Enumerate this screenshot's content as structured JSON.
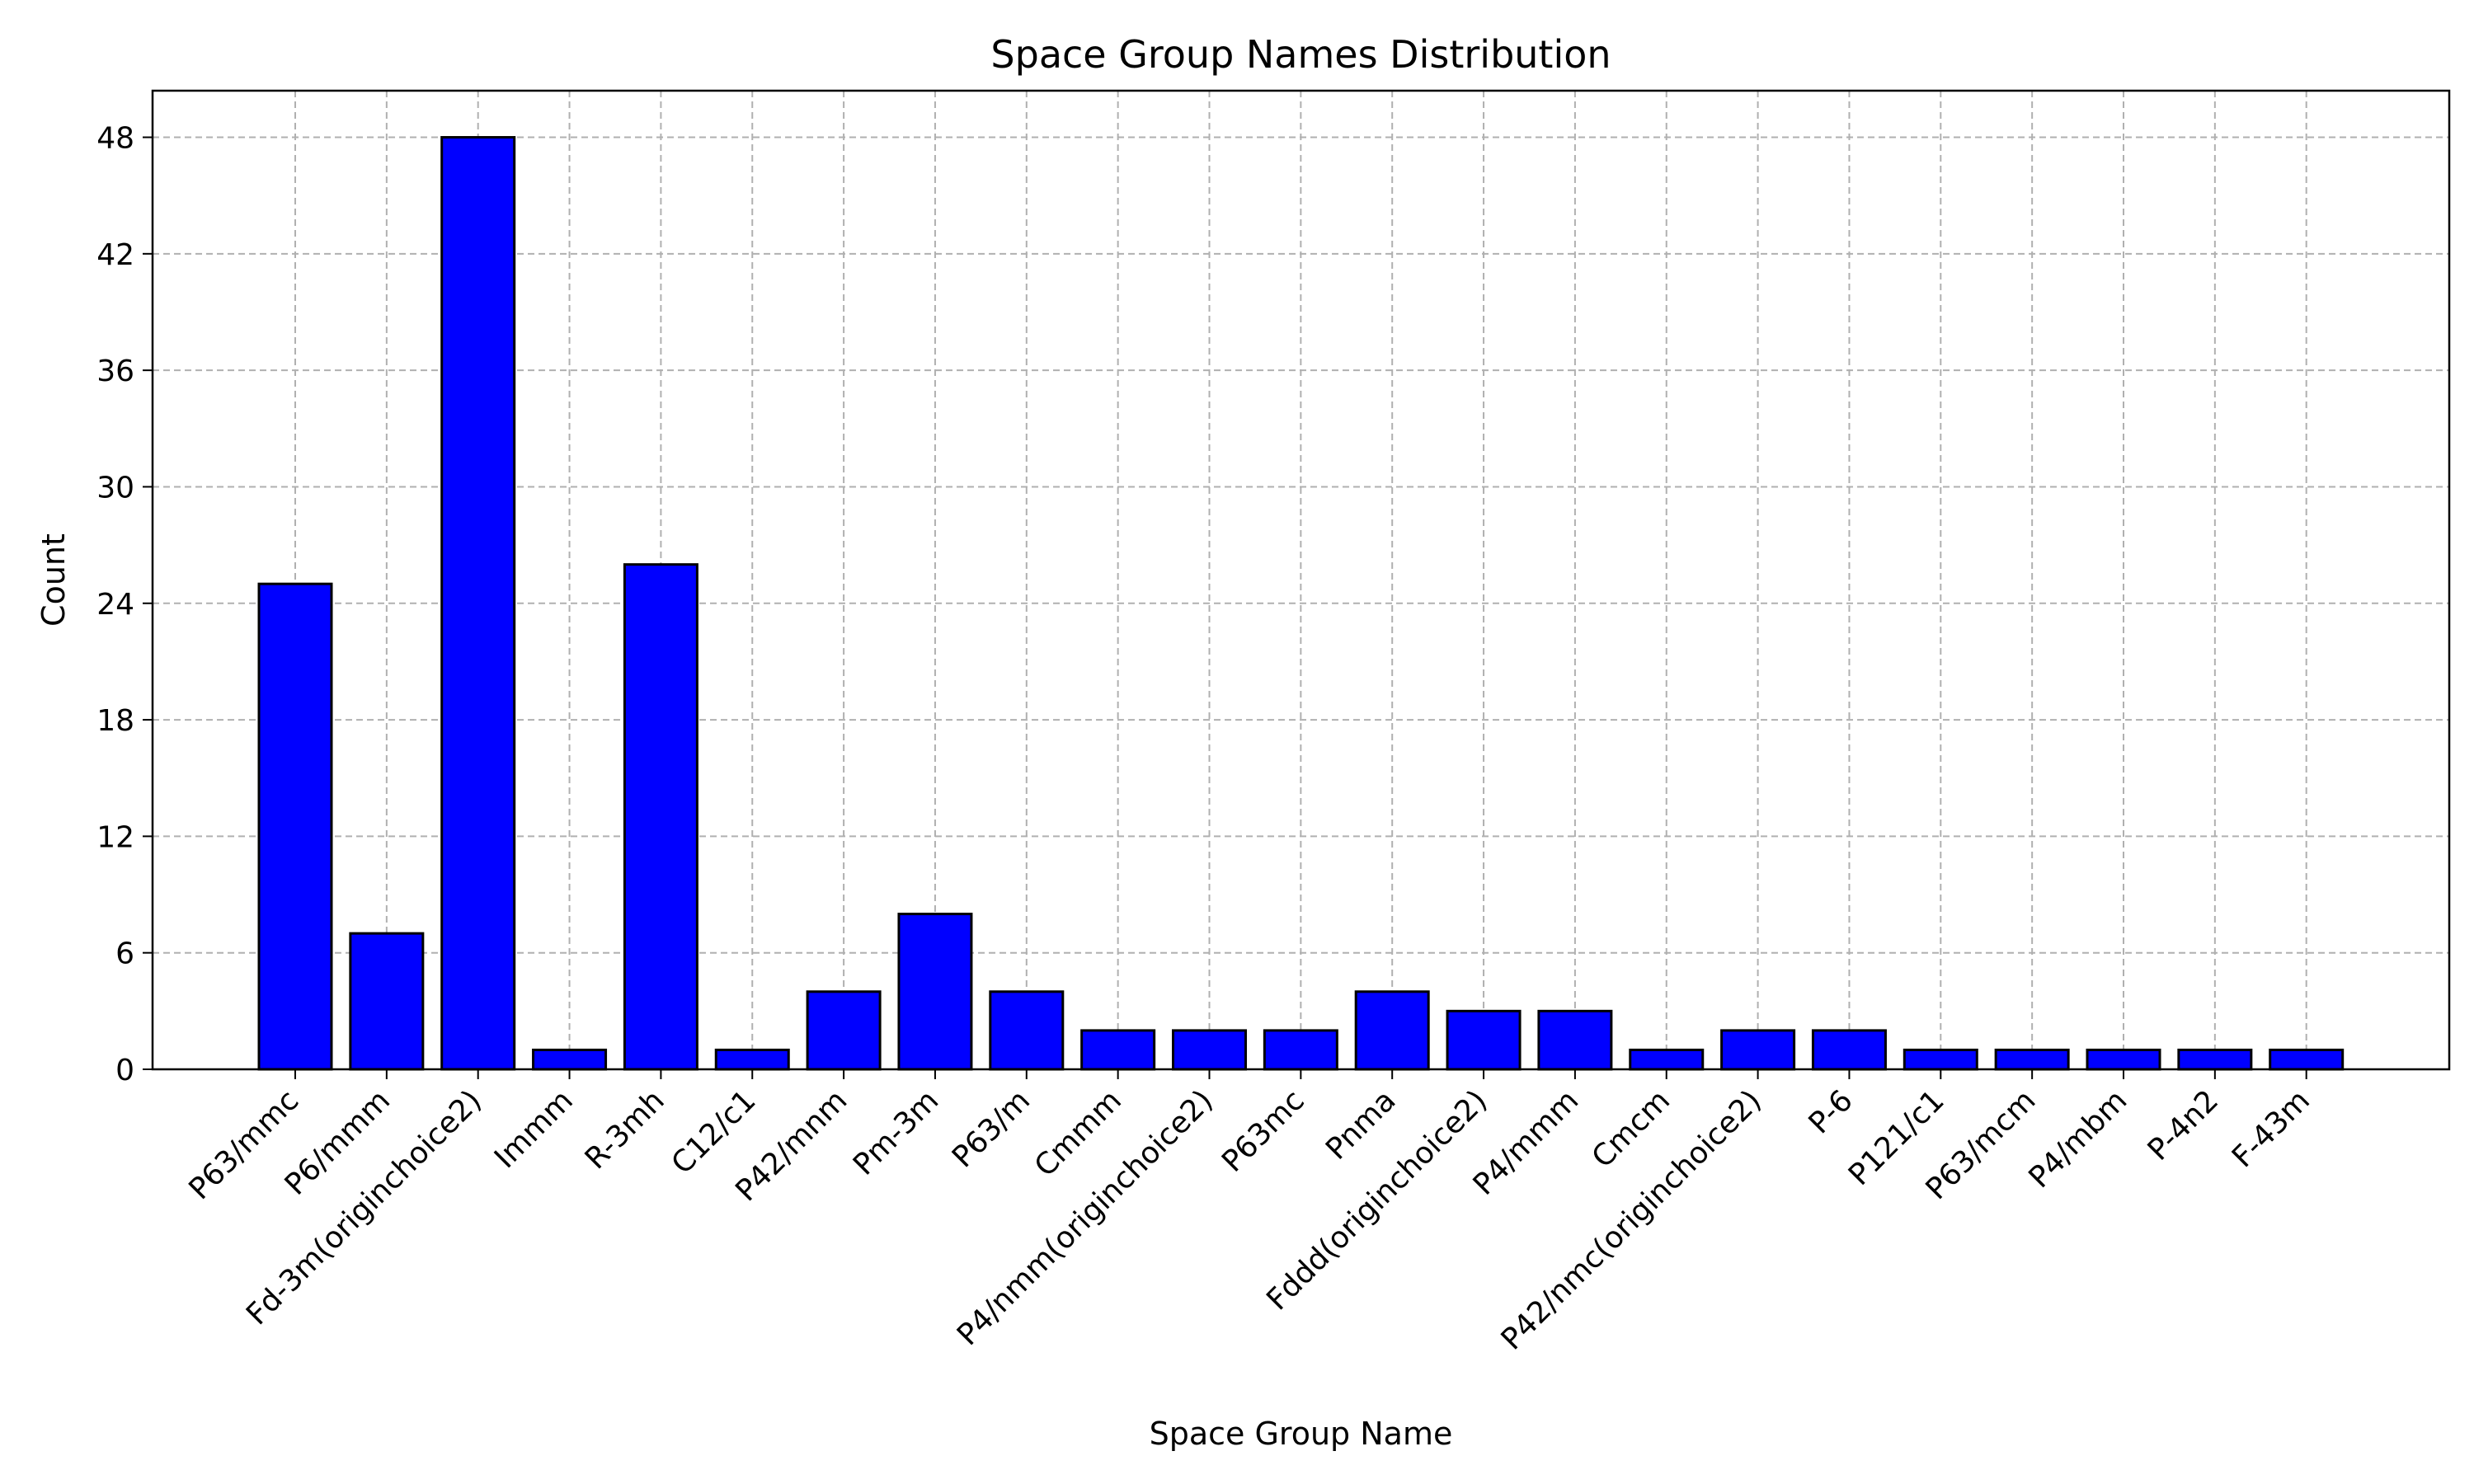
{
  "chart_data": {
    "type": "bar",
    "title": "Space Group Names Distribution",
    "xlabel": "Space Group Name",
    "ylabel": "Count",
    "categories": [
      "P63/mmc",
      "P6/mmm",
      "Fd-3m(originchoice2)",
      "Immm",
      "R-3mh",
      "C12/c1",
      "P42/mnm",
      "Pm-3m",
      "P63/m",
      "Cmmm",
      "P4/nmm(originchoice2)",
      "P63mc",
      "Pnma",
      "Fddd(originchoice2)",
      "P4/mmm",
      "Cmcm",
      "P42/nmc(originchoice2)",
      "P-6",
      "P121/c1",
      "P63/mcm",
      "P4/mbm",
      "P-4n2",
      "F-43m"
    ],
    "values": [
      25,
      7,
      48,
      1,
      26,
      1,
      4,
      8,
      4,
      2,
      2,
      2,
      4,
      3,
      3,
      1,
      2,
      2,
      1,
      1,
      1,
      1,
      1
    ],
    "ylim": [
      0,
      50.4
    ],
    "yticks": [
      0,
      6,
      12,
      18,
      24,
      30,
      36,
      42,
      48
    ],
    "grid": true,
    "colors": {
      "bar_fill": "#0000ff",
      "bar_edge": "#000000"
    }
  }
}
